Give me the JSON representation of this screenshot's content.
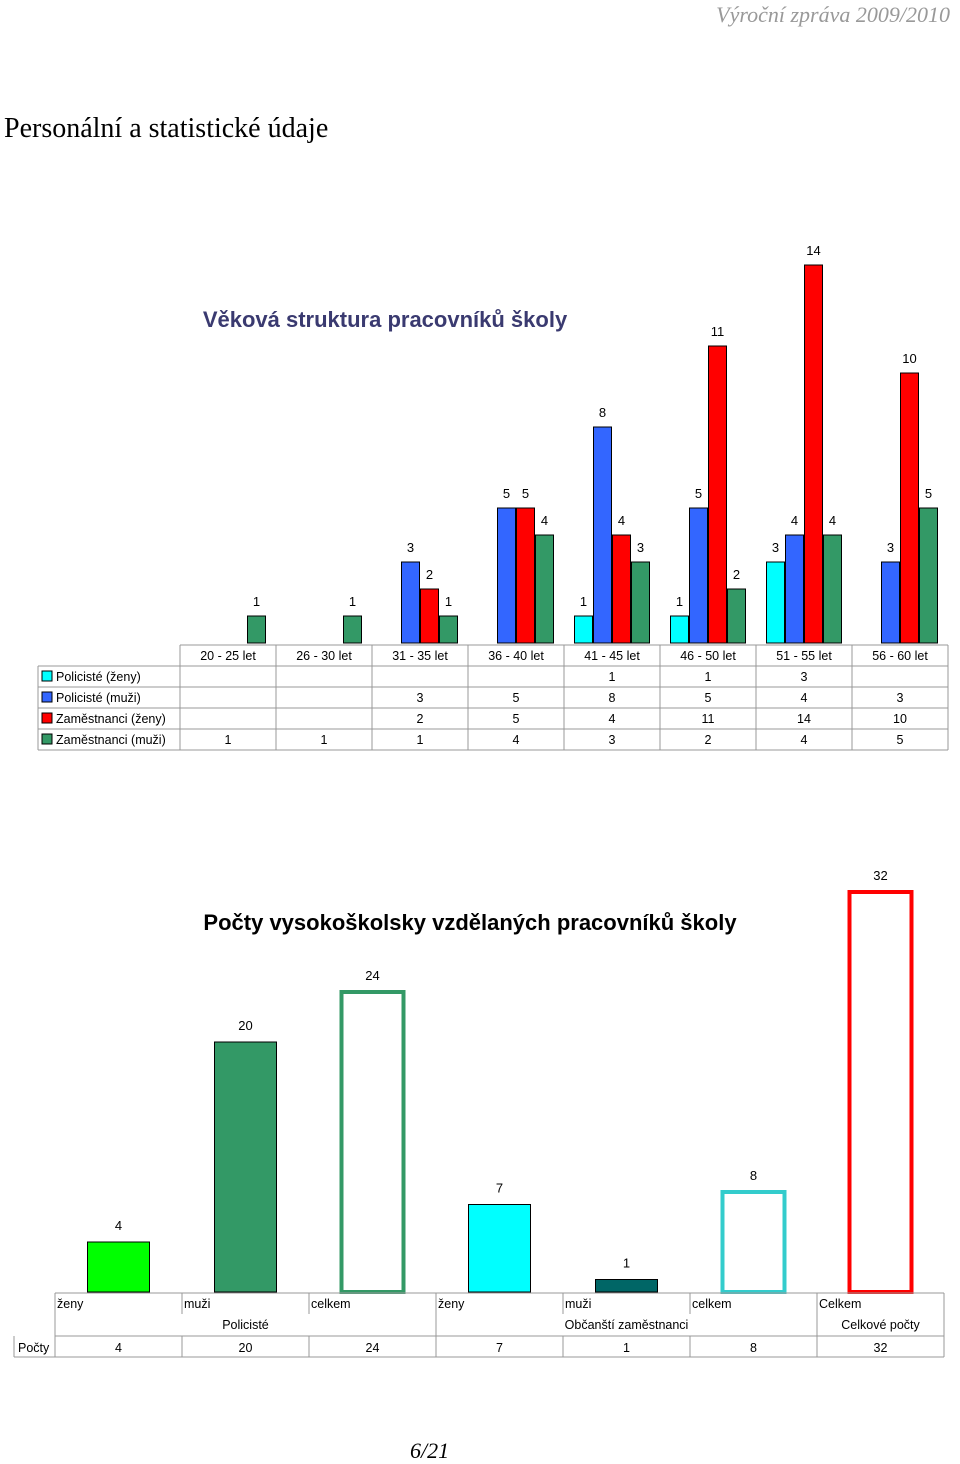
{
  "header": {
    "text": "Výroční zpráva 2009/2010"
  },
  "page_title": "Personální a statistické údaje",
  "footer": {
    "page": "6/21"
  },
  "chart_data": [
    {
      "type": "bar",
      "title": "Věková struktura pracovníků školy",
      "categories": [
        "20 - 25 let",
        "26 - 30 let",
        "31 - 35 let",
        "36 - 40 let",
        "41 - 45 let",
        "46 - 50 let",
        "51 - 55 let",
        "56 - 60 let"
      ],
      "series": [
        {
          "name": "Policisté  (ženy)",
          "color": "#00ffff",
          "values": [
            null,
            null,
            null,
            null,
            1,
            1,
            3,
            null
          ]
        },
        {
          "name": "Policisté  (muži)",
          "color": "#3366ff",
          "values": [
            null,
            null,
            3,
            5,
            8,
            5,
            4,
            3
          ]
        },
        {
          "name": "Zaměstnanci  (ženy)",
          "color": "#ff0000",
          "values": [
            null,
            null,
            2,
            5,
            4,
            11,
            14,
            10
          ]
        },
        {
          "name": "Zaměstnanci  (muži)",
          "color": "#339966",
          "values": [
            1,
            1,
            1,
            4,
            3,
            2,
            4,
            5
          ]
        }
      ],
      "ylim": [
        0,
        14
      ],
      "legend": "data-table-left",
      "grid": false
    },
    {
      "type": "bar",
      "title": "Počty vysokoškolsky vzdělaných pracovníků školy",
      "categories": [
        "ženy",
        "muži",
        "celkem",
        "ženy",
        "muži",
        "celkem",
        "Celkem"
      ],
      "groups": [
        {
          "label": "Policisté",
          "span": 3
        },
        {
          "label": "Občanští zaměstnanci",
          "span": 3
        },
        {
          "label": "Celkové počty",
          "span": 1
        }
      ],
      "series": [
        {
          "name": "Počty",
          "values": [
            4,
            20,
            24,
            7,
            1,
            8,
            32
          ]
        }
      ],
      "bar_styles": [
        {
          "fill": "#00ff00",
          "stroke": "#000000"
        },
        {
          "fill": "#339966",
          "stroke": "#000000"
        },
        {
          "fill": "#ffffff",
          "stroke": "#339966"
        },
        {
          "fill": "#00ffff",
          "stroke": "#000000"
        },
        {
          "fill": "#006666",
          "stroke": "#000000"
        },
        {
          "fill": "#ffffff",
          "stroke": "#33cccc"
        },
        {
          "fill": "#ffffff",
          "stroke": "#ff0000"
        }
      ],
      "ylim": [
        0,
        32
      ],
      "grid": false
    }
  ]
}
